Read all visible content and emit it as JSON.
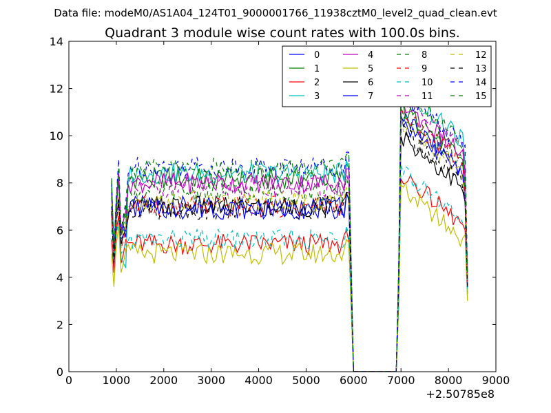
{
  "figure_suptitle": "Data file: modeM0/AS1A04_124T01_9000001766_11938cztM0_level2_quad_clean.evt",
  "chart_data": {
    "type": "line",
    "title": "Quadrant 3 module wise count rates with 100.0s bins.",
    "xlabel": "",
    "ylabel": "",
    "x_offset_label": "+2.50785e8",
    "xlim": [
      0,
      9000
    ],
    "ylim": [
      0,
      14
    ],
    "xticks": [
      0,
      1000,
      2000,
      3000,
      4000,
      5000,
      6000,
      7000,
      8000,
      9000
    ],
    "yticks": [
      0,
      2,
      4,
      6,
      8,
      10,
      12,
      14
    ],
    "grid": false,
    "legend": {
      "placement": "top-right",
      "columns": 4
    },
    "gap": {
      "start": 6000,
      "end": 6900,
      "value": 0
    },
    "segment1": {
      "start": 900,
      "end": 5900,
      "step": 50
    },
    "segment2": {
      "start": 6900,
      "end": 8400,
      "step": 50
    },
    "series": [
      {
        "name": "0",
        "color": "#0000ff",
        "dashed": false,
        "start": [
          7.6,
          4.6,
          7.0,
          8.6,
          5.8,
          6.2,
          5.7
        ],
        "level1": 7.0,
        "level2": 9.6,
        "end": [
          7.4,
          3.9
        ]
      },
      {
        "name": "1",
        "color": "#008000",
        "dashed": false,
        "start": [
          8.2,
          5.0,
          7.4,
          8.2,
          5.8,
          6.0,
          6.2
        ],
        "level1": 8.2,
        "level2": 10.0,
        "end": [
          7.6,
          4.4
        ]
      },
      {
        "name": "2",
        "color": "#ff0000",
        "dashed": false,
        "start": [
          5.6,
          4.2,
          6.0,
          6.6,
          4.6,
          5.0,
          5.6
        ],
        "level1": 5.4,
        "level2": 7.2,
        "end": [
          6.0,
          3.3
        ]
      },
      {
        "name": "3",
        "color": "#00bfbf",
        "dashed": false,
        "start": [
          8.0,
          5.2,
          7.2,
          8.6,
          4.8,
          4.6,
          4.4
        ],
        "level1": 8.4,
        "level2": 10.8,
        "end": [
          8.8,
          3.3
        ]
      },
      {
        "name": "4",
        "color": "#bf00bf",
        "dashed": false,
        "start": [
          7.4,
          4.4,
          6.8,
          8.4,
          6.0,
          6.4,
          6.8
        ],
        "level1": 8.0,
        "level2": 10.2,
        "end": [
          8.2,
          4.0
        ]
      },
      {
        "name": "5",
        "color": "#bfbf00",
        "dashed": false,
        "start": [
          5.0,
          3.6,
          5.4,
          6.2,
          4.2,
          4.6,
          5.2
        ],
        "level1": 5.0,
        "level2": 6.6,
        "end": [
          5.8,
          3.0
        ]
      },
      {
        "name": "6",
        "color": "#000000",
        "dashed": false,
        "start": [
          6.8,
          4.6,
          6.6,
          7.4,
          5.4,
          5.8,
          6.0
        ],
        "level1": 7.0,
        "level2": 8.8,
        "end": [
          7.2,
          3.6
        ]
      },
      {
        "name": "7",
        "color": "#0000ff",
        "dashed": false,
        "start": [
          7.0,
          4.8,
          6.8,
          7.2,
          5.6,
          5.8,
          6.0
        ],
        "level1": 6.9,
        "level2": 9.4,
        "end": [
          7.3,
          3.7
        ]
      },
      {
        "name": "8",
        "color": "#008000",
        "dashed": true,
        "start": [
          7.8,
          5.0,
          7.0,
          8.0,
          5.8,
          6.2,
          6.6
        ],
        "level1": 7.6,
        "level2": 9.8,
        "end": [
          8.0,
          3.8
        ]
      },
      {
        "name": "9",
        "color": "#ff0000",
        "dashed": true,
        "start": [
          6.6,
          4.8,
          6.4,
          7.0,
          5.2,
          5.6,
          6.0
        ],
        "level1": 7.0,
        "level2": 9.8,
        "end": [
          7.6,
          3.8
        ]
      },
      {
        "name": "10",
        "color": "#00bfbf",
        "dashed": true,
        "start": [
          6.0,
          4.6,
          5.8,
          6.4,
          5.0,
          5.2,
          5.4
        ],
        "level1": 5.6,
        "level2": 7.4,
        "end": [
          6.2,
          3.4
        ]
      },
      {
        "name": "11",
        "color": "#bf00bf",
        "dashed": true,
        "start": [
          7.6,
          5.0,
          7.2,
          8.2,
          5.8,
          6.4,
          6.8
        ],
        "level1": 7.8,
        "level2": 10.4,
        "end": [
          8.4,
          4.0
        ]
      },
      {
        "name": "12",
        "color": "#bfbf00",
        "dashed": true,
        "start": [
          7.2,
          4.8,
          6.6,
          7.4,
          5.6,
          6.0,
          6.2
        ],
        "level1": 7.2,
        "level2": 9.4,
        "end": [
          7.6,
          3.8
        ]
      },
      {
        "name": "13",
        "color": "#000000",
        "dashed": true,
        "start": [
          6.8,
          4.6,
          6.4,
          7.2,
          5.4,
          5.8,
          6.0
        ],
        "level1": 6.9,
        "level2": 9.0,
        "end": [
          7.2,
          3.6
        ]
      },
      {
        "name": "14",
        "color": "#0000ff",
        "dashed": true,
        "start": [
          8.0,
          5.2,
          7.4,
          9.0,
          6.0,
          6.6,
          7.2
        ],
        "level1": 8.7,
        "level2": 10.6,
        "end": [
          9.6,
          4.2
        ]
      },
      {
        "name": "15",
        "color": "#008000",
        "dashed": true,
        "start": [
          8.1,
          5.2,
          7.4,
          8.6,
          6.0,
          6.4,
          7.0
        ],
        "level1": 8.6,
        "level2": 10.8,
        "end": [
          9.0,
          4.2
        ]
      }
    ]
  }
}
